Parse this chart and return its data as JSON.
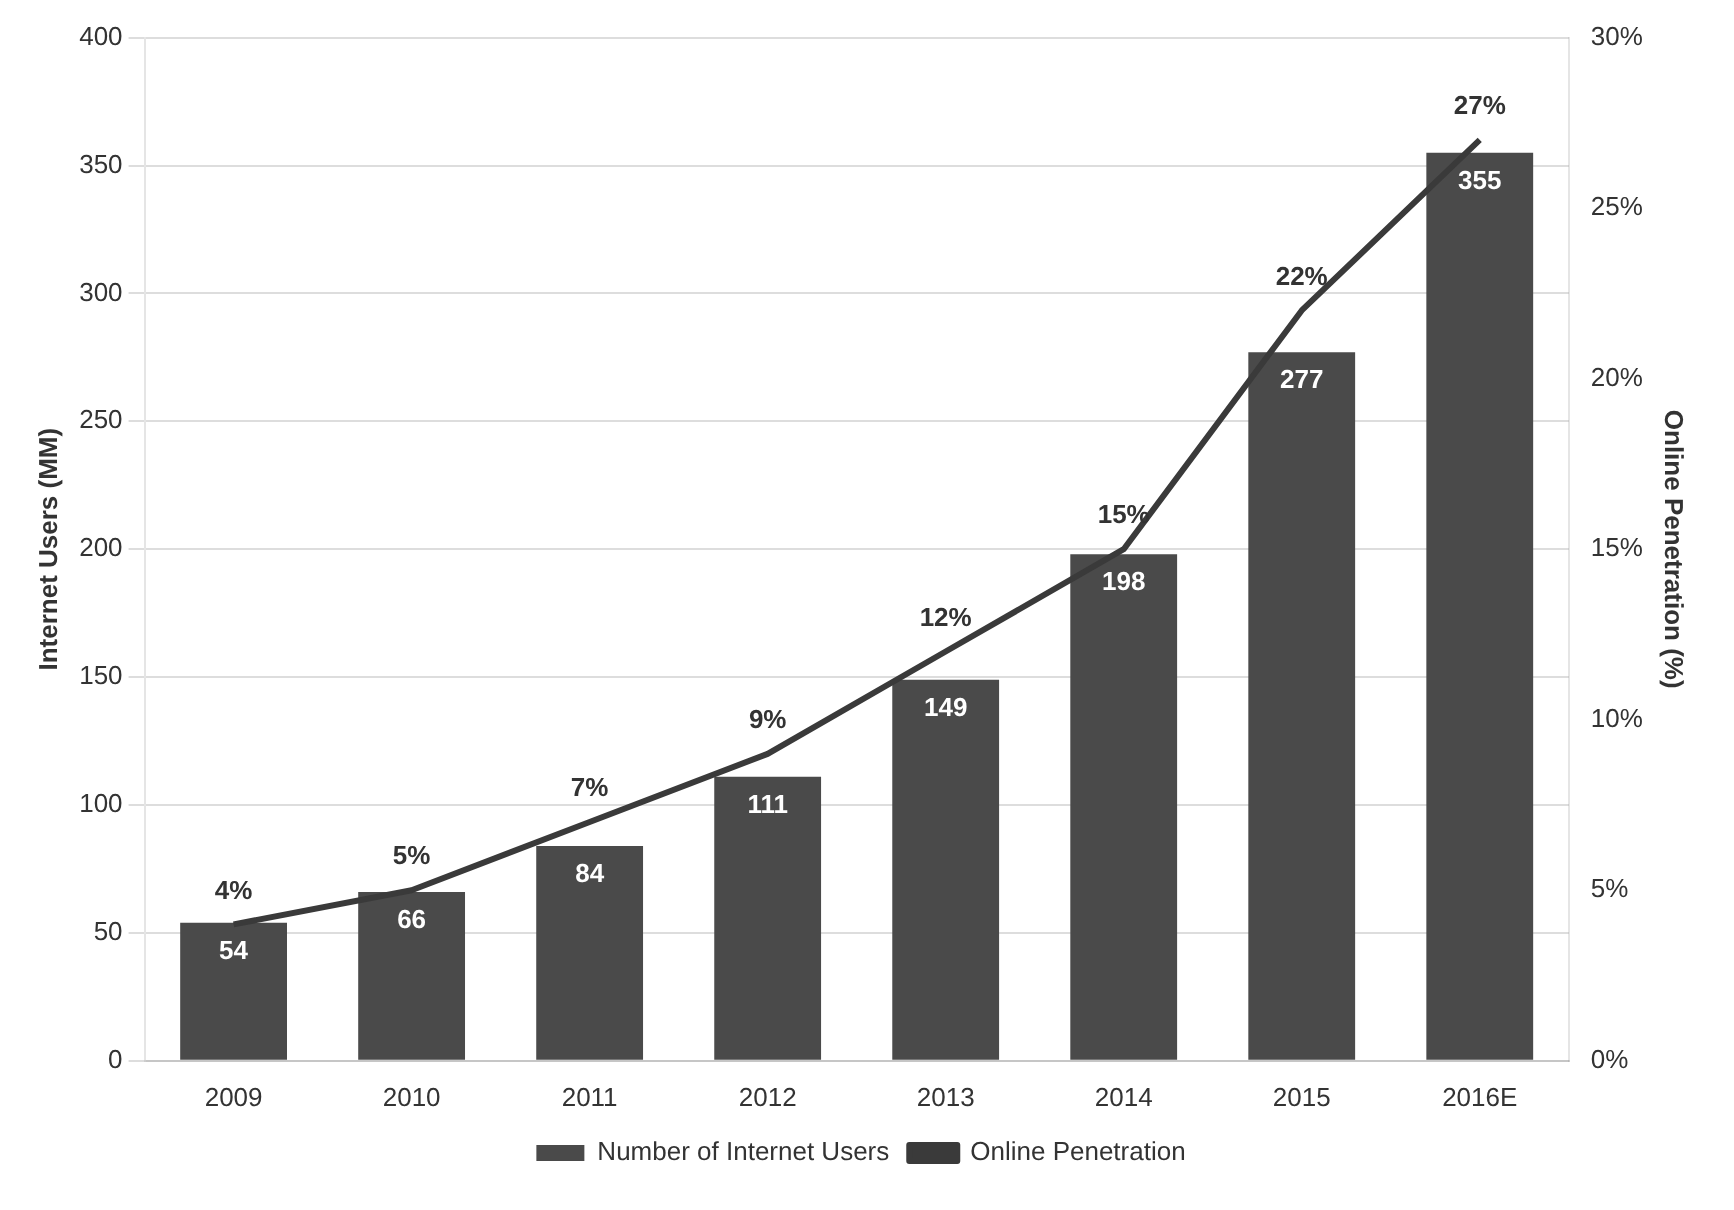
{
  "chart_data": {
    "type": "bar",
    "categories": [
      "2009",
      "2010",
      "2011",
      "2012",
      "2013",
      "2014",
      "2015",
      "2016E"
    ],
    "series": [
      {
        "name": "Number of Internet Users",
        "color": "#4a4a4a",
        "values": [
          54,
          66,
          84,
          111,
          149,
          198,
          277,
          355
        ],
        "value_labels": [
          "54",
          "66",
          "84",
          "111",
          "149",
          "198",
          "277",
          "355"
        ]
      },
      {
        "name": "Online Penetration",
        "type": "line",
        "axis": "y2",
        "color": "#3a3a3a",
        "values": [
          4,
          5,
          7,
          9,
          12,
          15,
          22,
          27
        ],
        "value_labels": [
          "4%",
          "5%",
          "7%",
          "9%",
          "12%",
          "15%",
          "22%",
          "27%"
        ]
      }
    ],
    "ylabel": "Internet Users (MM)",
    "y2label": "Online Penetration (%)",
    "ylim": [
      0,
      400
    ],
    "yticks": [
      0,
      50,
      100,
      150,
      200,
      250,
      300,
      350,
      400
    ],
    "y2lim": [
      0,
      30
    ],
    "y2ticks": [
      {
        "value": 0,
        "label": "0%"
      },
      {
        "value": 5,
        "label": "5%"
      },
      {
        "value": 10,
        "label": "10%"
      },
      {
        "value": 15,
        "label": "15%"
      },
      {
        "value": 20,
        "label": "20%"
      },
      {
        "value": 25,
        "label": "25%"
      },
      {
        "value": 30,
        "label": "30%"
      }
    ],
    "grid": "y",
    "legend": "bottom",
    "marker": "none"
  }
}
